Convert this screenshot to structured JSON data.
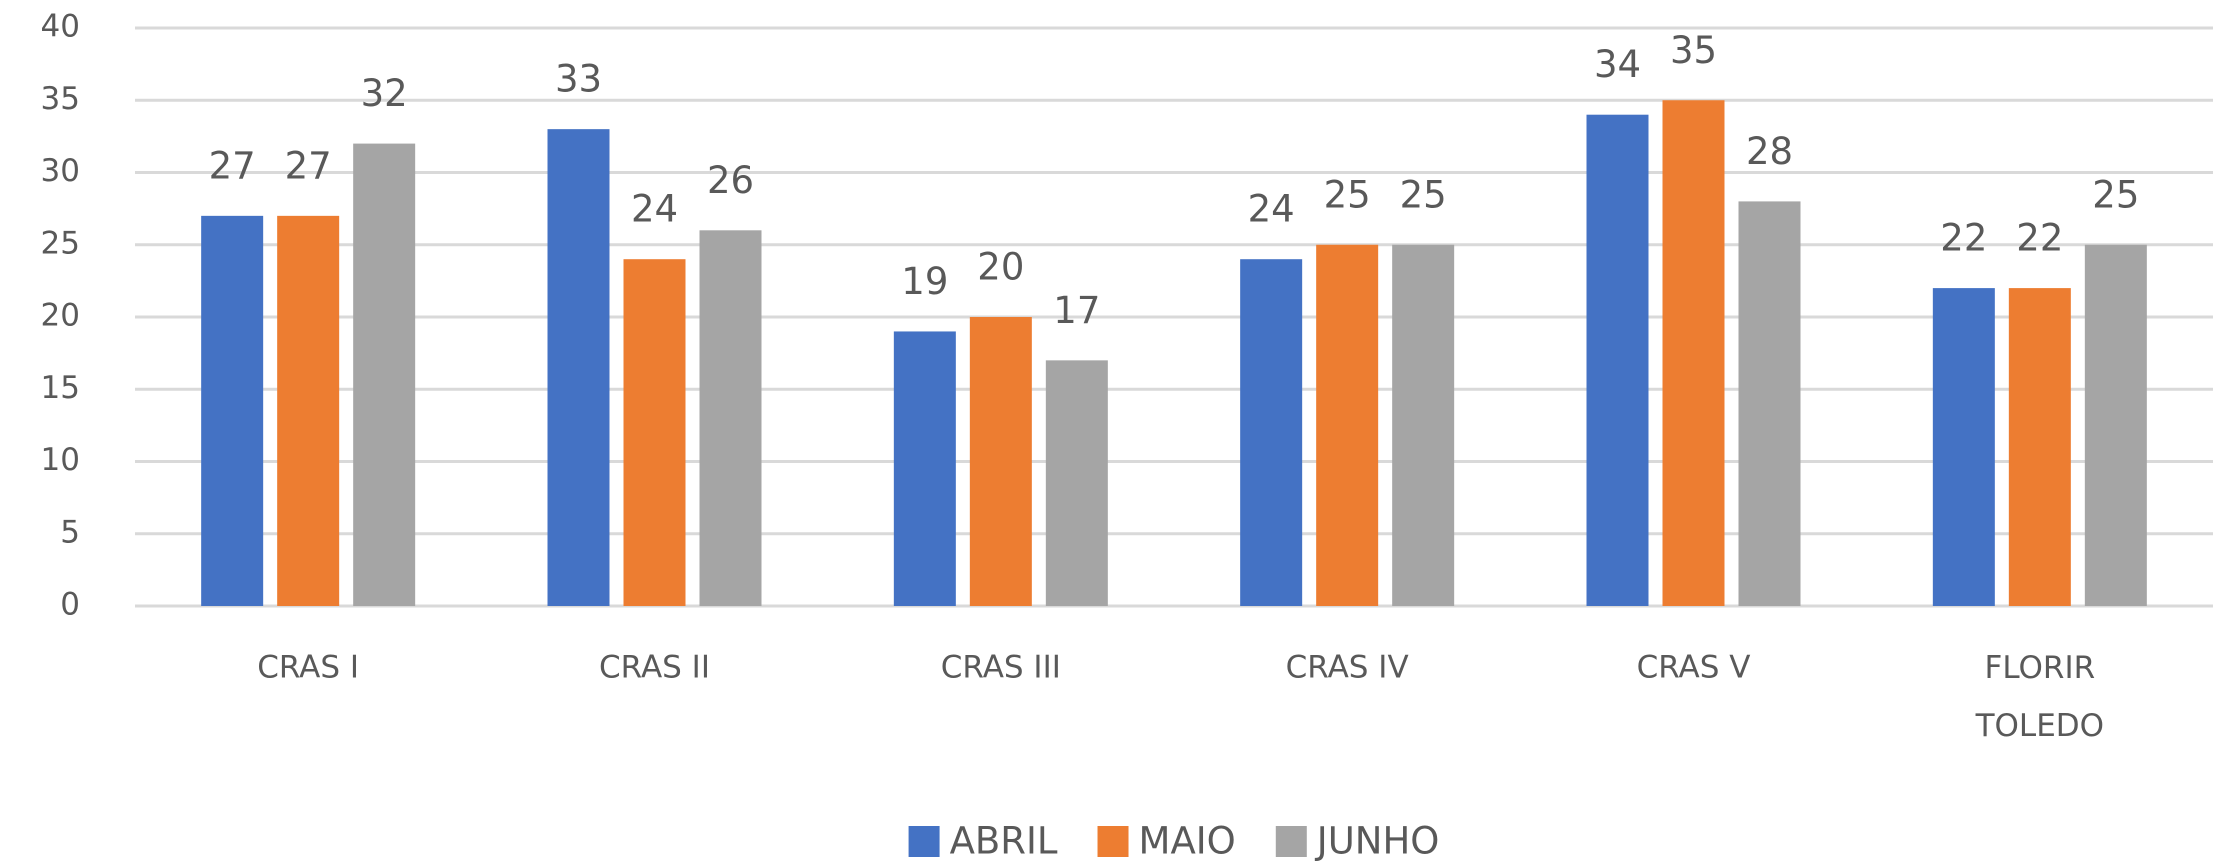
{
  "chart_data": {
    "type": "bar",
    "categories": [
      "CRAS I",
      "CRAS II",
      "CRAS III",
      "CRAS IV",
      "CRAS V",
      "FLORIR TOLEDO"
    ],
    "series": [
      {
        "name": "ABRIL",
        "color": "#4472c4",
        "values": [
          27,
          33,
          19,
          24,
          34,
          22
        ]
      },
      {
        "name": "MAIO",
        "color": "#ed7d31",
        "values": [
          27,
          24,
          20,
          25,
          35,
          22
        ]
      },
      {
        "name": "JUNHO",
        "color": "#a5a5a5",
        "values": [
          32,
          26,
          17,
          25,
          28,
          25
        ]
      }
    ],
    "ylim": [
      0,
      40
    ],
    "yticks": [
      0,
      5,
      10,
      15,
      20,
      25,
      30,
      35,
      40
    ],
    "grid": true,
    "legend": "bottom"
  }
}
